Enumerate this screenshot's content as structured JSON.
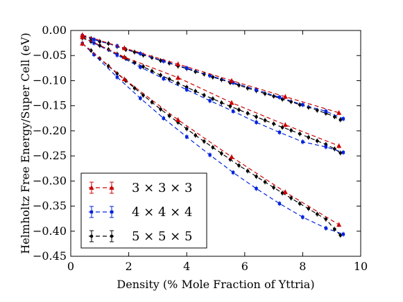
{
  "chart_data": {
    "type": "line",
    "title": "",
    "xlabel": "Density (% Mole Fraction of Yttria)",
    "ylabel": "Helmholtz Free Energy/Super Cell (eV)",
    "xlim": [
      0,
      10
    ],
    "ylim": [
      -0.45,
      0.0
    ],
    "xticks": [
      "0",
      "2",
      "4",
      "6",
      "8",
      "10"
    ],
    "yticks": [
      "0.00",
      "−0.05",
      "−0.10",
      "−0.15",
      "−0.20",
      "−0.25",
      "−0.30",
      "−0.35",
      "−0.40",
      "−0.45"
    ],
    "grid": false,
    "legend_position": "lower-left",
    "colors": {
      "3x3x3": "#cc0000",
      "4x4x4": "#0022dd",
      "5x5x5": "#000000"
    },
    "series": [
      {
        "name": "3 × 3 × 3",
        "color": "#cc0000",
        "marker": "triangle",
        "line": "dashed",
        "points": [
          [
            0.4,
            -0.009
          ],
          [
            1.85,
            -0.035
          ],
          [
            3.7,
            -0.067
          ],
          [
            5.55,
            -0.1
          ],
          [
            7.4,
            -0.132
          ],
          [
            9.25,
            -0.164
          ],
          [
            0.4,
            -0.013
          ],
          [
            1.85,
            -0.053
          ],
          [
            3.7,
            -0.094
          ],
          [
            5.55,
            -0.144
          ],
          [
            7.4,
            -0.188
          ],
          [
            9.25,
            -0.23
          ],
          [
            0.4,
            -0.026
          ],
          [
            1.85,
            -0.097
          ],
          [
            3.7,
            -0.178
          ],
          [
            5.55,
            -0.252
          ],
          [
            7.4,
            -0.322
          ],
          [
            9.25,
            -0.387
          ]
        ]
      },
      {
        "name": "4 × 4 × 4",
        "color": "#0022dd",
        "marker": "square",
        "line": "dashed",
        "points": [
          [
            0.4,
            -0.01
          ],
          [
            0.8,
            -0.018
          ],
          [
            1.6,
            -0.031
          ],
          [
            2.4,
            -0.046
          ],
          [
            3.2,
            -0.061
          ],
          [
            4.0,
            -0.075
          ],
          [
            4.8,
            -0.09
          ],
          [
            5.6,
            -0.104
          ],
          [
            6.4,
            -0.118
          ],
          [
            7.2,
            -0.133
          ],
          [
            8.0,
            -0.148
          ],
          [
            8.8,
            -0.161
          ],
          [
            9.4,
            -0.176
          ],
          [
            0.4,
            -0.013
          ],
          [
            0.8,
            -0.025
          ],
          [
            1.6,
            -0.049
          ],
          [
            2.4,
            -0.073
          ],
          [
            3.2,
            -0.096
          ],
          [
            4.0,
            -0.118
          ],
          [
            4.8,
            -0.14
          ],
          [
            5.6,
            -0.161
          ],
          [
            6.4,
            -0.183
          ],
          [
            7.2,
            -0.203
          ],
          [
            8.0,
            -0.222
          ],
          [
            8.8,
            -0.232
          ],
          [
            9.4,
            -0.243
          ],
          [
            0.4,
            -0.026
          ],
          [
            0.8,
            -0.048
          ],
          [
            1.6,
            -0.093
          ],
          [
            2.4,
            -0.135
          ],
          [
            3.2,
            -0.175
          ],
          [
            4.0,
            -0.212
          ],
          [
            4.8,
            -0.248
          ],
          [
            5.6,
            -0.283
          ],
          [
            6.4,
            -0.315
          ],
          [
            7.2,
            -0.345
          ],
          [
            8.0,
            -0.372
          ],
          [
            8.8,
            -0.394
          ],
          [
            9.4,
            -0.406
          ]
        ]
      },
      {
        "name": "5 × 5 × 5",
        "color": "#000000",
        "marker": "circle",
        "line": "dashed",
        "points": [
          [
            0.4,
            -0.012
          ],
          [
            0.7,
            -0.016
          ],
          [
            1.0,
            -0.022
          ],
          [
            1.3,
            -0.026
          ],
          [
            1.6,
            -0.032
          ],
          [
            1.9,
            -0.038
          ],
          [
            2.2,
            -0.043
          ],
          [
            2.5,
            -0.049
          ],
          [
            2.8,
            -0.054
          ],
          [
            3.1,
            -0.06
          ],
          [
            3.4,
            -0.065
          ],
          [
            3.7,
            -0.071
          ],
          [
            4.0,
            -0.076
          ],
          [
            4.3,
            -0.082
          ],
          [
            4.6,
            -0.087
          ],
          [
            4.9,
            -0.093
          ],
          [
            5.2,
            -0.098
          ],
          [
            5.5,
            -0.104
          ],
          [
            5.8,
            -0.109
          ],
          [
            6.1,
            -0.115
          ],
          [
            6.4,
            -0.12
          ],
          [
            6.7,
            -0.126
          ],
          [
            7.0,
            -0.131
          ],
          [
            7.3,
            -0.137
          ],
          [
            7.6,
            -0.142
          ],
          [
            7.9,
            -0.148
          ],
          [
            8.2,
            -0.153
          ],
          [
            8.5,
            -0.159
          ],
          [
            8.8,
            -0.165
          ],
          [
            9.1,
            -0.172
          ],
          [
            9.3,
            -0.178
          ],
          [
            0.4,
            -0.015
          ],
          [
            0.7,
            -0.022
          ],
          [
            1.0,
            -0.03
          ],
          [
            1.3,
            -0.038
          ],
          [
            1.6,
            -0.047
          ],
          [
            1.9,
            -0.056
          ],
          [
            2.2,
            -0.064
          ],
          [
            2.5,
            -0.072
          ],
          [
            2.8,
            -0.081
          ],
          [
            3.1,
            -0.089
          ],
          [
            3.4,
            -0.097
          ],
          [
            3.7,
            -0.105
          ],
          [
            4.0,
            -0.113
          ],
          [
            4.3,
            -0.121
          ],
          [
            4.6,
            -0.129
          ],
          [
            4.9,
            -0.136
          ],
          [
            5.2,
            -0.144
          ],
          [
            5.5,
            -0.151
          ],
          [
            5.8,
            -0.158
          ],
          [
            6.1,
            -0.165
          ],
          [
            6.4,
            -0.172
          ],
          [
            6.7,
            -0.179
          ],
          [
            7.0,
            -0.186
          ],
          [
            7.3,
            -0.193
          ],
          [
            7.6,
            -0.199
          ],
          [
            7.9,
            -0.206
          ],
          [
            8.2,
            -0.213
          ],
          [
            8.5,
            -0.22
          ],
          [
            8.8,
            -0.227
          ],
          [
            9.1,
            -0.236
          ],
          [
            9.3,
            -0.244
          ],
          [
            0.4,
            -0.026
          ],
          [
            0.7,
            -0.04
          ],
          [
            1.0,
            -0.056
          ],
          [
            1.3,
            -0.071
          ],
          [
            1.6,
            -0.086
          ],
          [
            1.9,
            -0.1
          ],
          [
            2.2,
            -0.115
          ],
          [
            2.5,
            -0.129
          ],
          [
            2.8,
            -0.143
          ],
          [
            3.1,
            -0.157
          ],
          [
            3.4,
            -0.17
          ],
          [
            3.7,
            -0.183
          ],
          [
            4.0,
            -0.196
          ],
          [
            4.3,
            -0.209
          ],
          [
            4.6,
            -0.221
          ],
          [
            4.9,
            -0.233
          ],
          [
            5.2,
            -0.245
          ],
          [
            5.5,
            -0.257
          ],
          [
            5.8,
            -0.269
          ],
          [
            6.1,
            -0.28
          ],
          [
            6.4,
            -0.291
          ],
          [
            6.7,
            -0.302
          ],
          [
            7.0,
            -0.313
          ],
          [
            7.3,
            -0.324
          ],
          [
            7.6,
            -0.334
          ],
          [
            7.9,
            -0.345
          ],
          [
            8.2,
            -0.355
          ],
          [
            8.5,
            -0.366
          ],
          [
            8.8,
            -0.376
          ],
          [
            9.1,
            -0.396
          ],
          [
            9.3,
            -0.408
          ]
        ]
      }
    ],
    "legend": [
      {
        "label": "3 × 3 × 3",
        "color": "#cc0000",
        "marker": "triangle"
      },
      {
        "label": "4 × 4 × 4",
        "color": "#0022dd",
        "marker": "square"
      },
      {
        "label": "5 × 5 × 5",
        "color": "#000000",
        "marker": "circle"
      }
    ]
  }
}
